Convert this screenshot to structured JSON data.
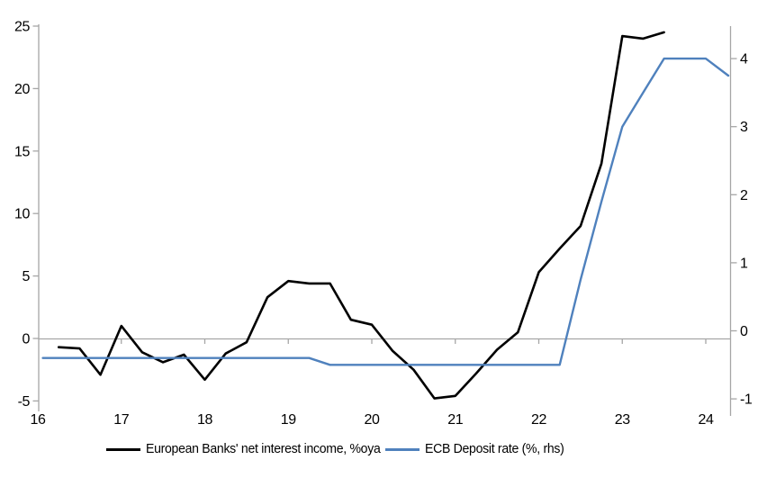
{
  "chart_data": {
    "type": "line",
    "title": "",
    "x_axis": {
      "ticks": [
        16,
        17,
        18,
        19,
        20,
        21,
        22,
        23,
        24
      ],
      "tick_labels": [
        "16",
        "17",
        "18",
        "19",
        "20",
        "21",
        "22",
        "23",
        "24"
      ],
      "min": 16,
      "max": 24.3
    },
    "left_axis": {
      "ticks": [
        -5,
        0,
        5,
        10,
        15,
        20,
        25
      ],
      "tick_labels": [
        "-5",
        "0",
        "5",
        "10",
        "15",
        "20",
        "25"
      ],
      "min": -5.7,
      "max": 25.1,
      "zero_gridline": true
    },
    "right_axis": {
      "ticks": [
        -1,
        0,
        1,
        2,
        3,
        4
      ],
      "tick_labels": [
        "-1",
        "0",
        "1",
        "2",
        "3",
        "4"
      ],
      "min": -1.3,
      "max": 4.45
    },
    "legend_position": "bottom",
    "grid": "zero-line-only",
    "axis_color": "#A6A6A6",
    "series": [
      {
        "name": "European Banks' net interest income, %oya",
        "axis": "left",
        "color": "#000000",
        "x": [
          16.25,
          16.5,
          16.75,
          17.0,
          17.25,
          17.5,
          17.75,
          18.0,
          18.25,
          18.5,
          18.75,
          19.0,
          19.25,
          19.5,
          19.75,
          20.0,
          20.25,
          20.5,
          20.75,
          21.0,
          21.25,
          21.5,
          21.75,
          22.0,
          22.25,
          22.5,
          22.75,
          23.0,
          23.25,
          23.5
        ],
        "values": [
          -0.7,
          -0.8,
          -2.9,
          1.0,
          -1.1,
          -1.9,
          -1.3,
          -3.3,
          -1.2,
          -0.3,
          3.3,
          4.6,
          4.4,
          4.4,
          1.5,
          1.1,
          -1.0,
          -2.5,
          -4.8,
          -4.6,
          -2.8,
          -0.9,
          0.5,
          5.3,
          7.2,
          9.0,
          14.0,
          24.2,
          24.0,
          24.5
        ]
      },
      {
        "name": "ECB Deposit rate (%, rhs)",
        "axis": "right",
        "color": "#4F81BD",
        "x": [
          16.06,
          19.25,
          19.5,
          22.25,
          22.5,
          22.75,
          23.0,
          23.25,
          23.5,
          23.75,
          24.0,
          24.27
        ],
        "values": [
          -0.4,
          -0.4,
          -0.5,
          -0.5,
          0.75,
          1.9,
          3.0,
          3.5,
          4.0,
          4.0,
          4.0,
          3.75
        ]
      }
    ]
  }
}
